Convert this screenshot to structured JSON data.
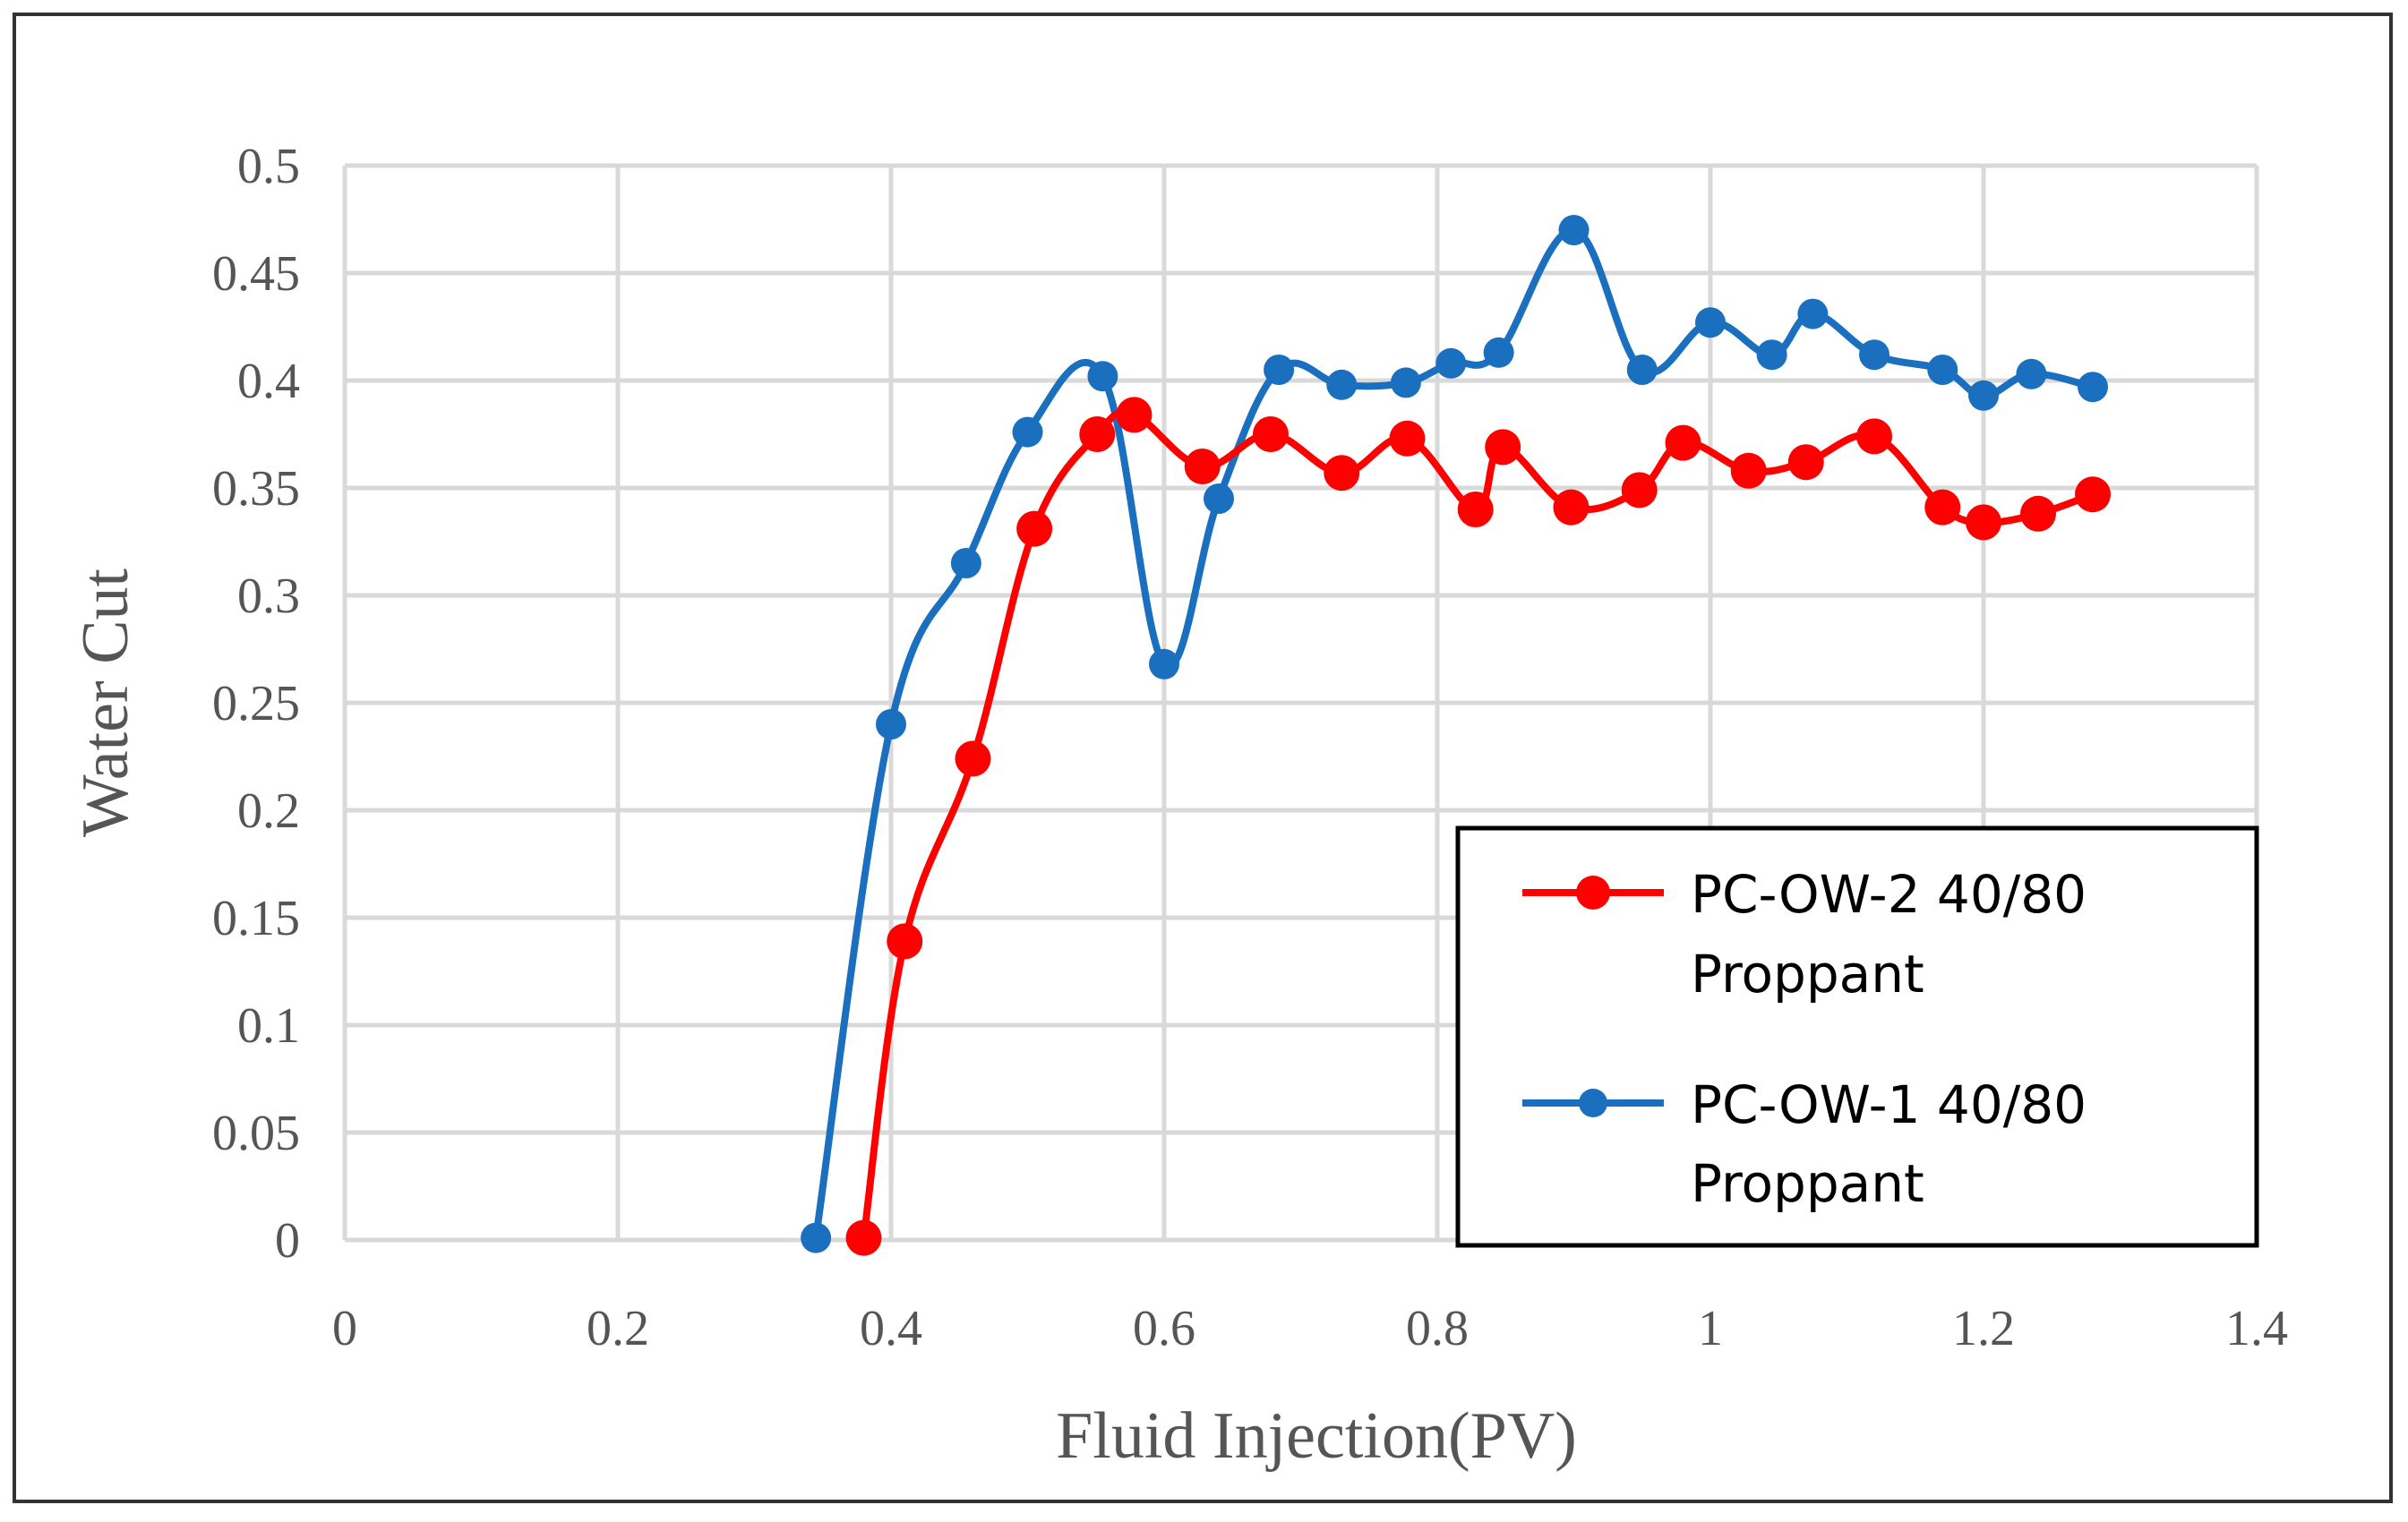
{
  "chart_data": {
    "type": "line",
    "title": "",
    "xlabel": "Fluid Injection(PV)",
    "ylabel": "Water Cut",
    "xlim": [
      0,
      1.4
    ],
    "ylim": [
      0,
      0.5
    ],
    "x_ticks": [
      0,
      0.2,
      0.4,
      0.6,
      0.8,
      1.0,
      1.2,
      1.4
    ],
    "x_tick_labels": [
      "0",
      "0.2",
      "0.4",
      "0.6",
      "0.8",
      "1",
      "1.2",
      "1.4"
    ],
    "y_ticks": [
      0,
      0.05,
      0.1,
      0.15,
      0.2,
      0.25,
      0.3,
      0.35,
      0.4,
      0.45,
      0.5
    ],
    "y_tick_labels": [
      "0",
      "0.05",
      "0.1",
      "0.15",
      "0.2",
      "0.25",
      "0.3",
      "0.35",
      "0.4",
      "0.45",
      "0.5"
    ],
    "grid": true,
    "legend_position": "bottom-right",
    "series": [
      {
        "name": "PC-OW-2 40/80 Proppant",
        "legend_lines": [
          "PC-OW-2 40/80",
          "Proppant"
        ],
        "color": "#ff0000",
        "x": [
          0.38,
          0.41,
          0.46,
          0.505,
          0.551,
          0.578,
          0.628,
          0.678,
          0.73,
          0.778,
          0.828,
          0.848,
          0.898,
          0.948,
          0.98,
          1.028,
          1.07,
          1.12,
          1.17,
          1.2,
          1.24,
          1.28
        ],
        "y": [
          0.001,
          0.139,
          0.224,
          0.331,
          0.375,
          0.384,
          0.36,
          0.375,
          0.357,
          0.373,
          0.34,
          0.369,
          0.341,
          0.349,
          0.371,
          0.358,
          0.362,
          0.374,
          0.341,
          0.334,
          0.338,
          0.347
        ]
      },
      {
        "name": "PC-OW-1 40/80 Proppant",
        "legend_lines": [
          "PC-OW-1 40/80",
          "Proppant"
        ],
        "color": "#1a6fbf",
        "x": [
          0.345,
          0.4,
          0.455,
          0.5,
          0.555,
          0.6,
          0.64,
          0.684,
          0.73,
          0.777,
          0.81,
          0.845,
          0.9,
          0.95,
          1.0,
          1.045,
          1.075,
          1.12,
          1.17,
          1.2,
          1.235,
          1.28
        ],
        "y": [
          0.001,
          0.24,
          0.315,
          0.376,
          0.402,
          0.268,
          0.345,
          0.405,
          0.398,
          0.399,
          0.408,
          0.413,
          0.47,
          0.405,
          0.427,
          0.412,
          0.431,
          0.412,
          0.405,
          0.393,
          0.403,
          0.397
        ]
      }
    ]
  }
}
